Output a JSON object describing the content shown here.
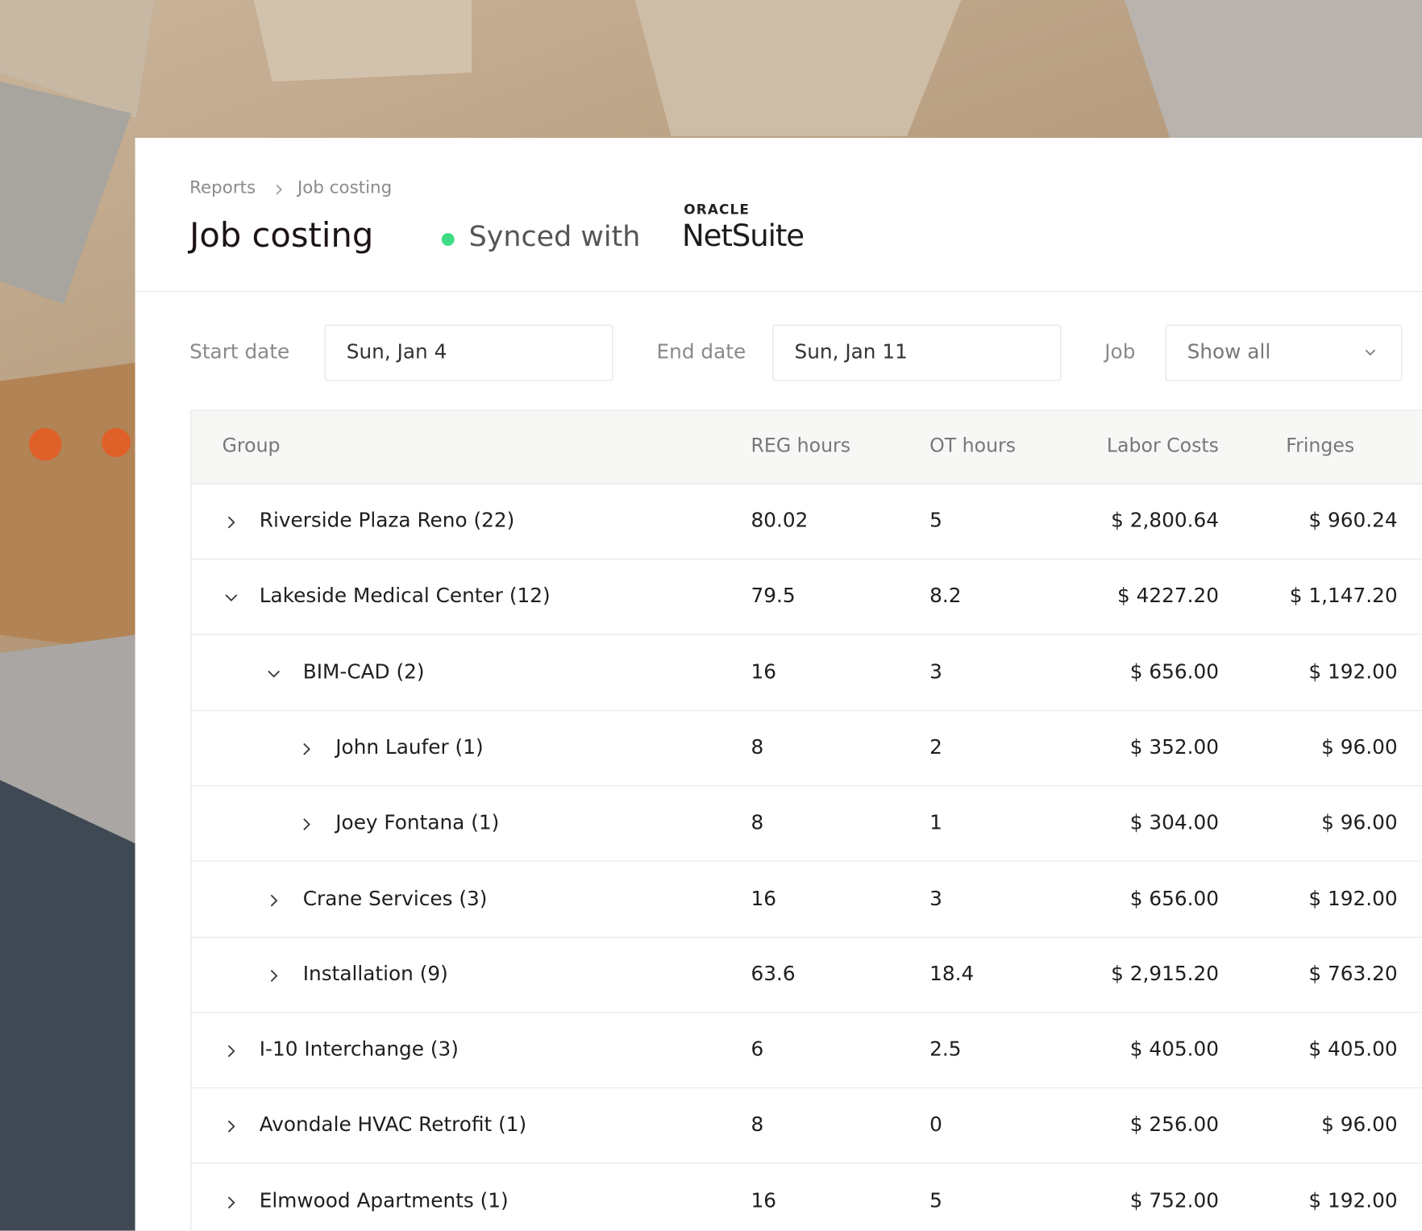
{
  "breadcrumb": [
    "Reports",
    "Job costing"
  ],
  "header": {
    "title": "Job costing",
    "sync_status": "Synced with",
    "integration_brand": "ORACLE",
    "integration_name": "NetSuite"
  },
  "filters": [
    {
      "label": "Start date",
      "value": "Sun, Jan 4"
    },
    {
      "label": "End date",
      "value": "Sun, Jan 11"
    },
    {
      "label": "Job",
      "value": "Show all"
    }
  ],
  "table": {
    "columns": [
      "Group",
      "REG hours",
      "OT hours",
      "Labor Costs",
      "Fringes"
    ],
    "rows": [
      [
        "Riverside Plaza Reno (22)",
        "80.02",
        "5",
        "$ 2,800.64",
        "$ 960.24"
      ],
      [
        "Lakeside Medical Center (12)",
        "79.5",
        "8.2",
        "$ 4227.20",
        "$ 1,147.20"
      ],
      [
        "BIM-CAD (2)",
        "16",
        "3",
        "$ 656.00",
        "$ 192.00"
      ],
      [
        "John Laufer (1)",
        "8",
        "2",
        "$ 352.00",
        "$ 96.00"
      ],
      [
        "Joey Fontana (1)",
        "8",
        "1",
        "$ 304.00",
        "$ 96.00"
      ],
      [
        "Crane Services (3)",
        "16",
        "3",
        "$ 656.00",
        "$ 192.00"
      ],
      [
        "Installation (9)",
        "63.6",
        "18.4",
        "$ 2,915.20",
        "$ 763.20"
      ],
      [
        "I-10 Interchange (3)",
        "6",
        "2.5",
        "$ 405.00",
        "$ 405.00"
      ],
      [
        "Avondale HVAC Retrofit (1)",
        "8",
        "0",
        "$ 256.00",
        "$ 96.00"
      ],
      [
        "Elmwood Apartments (1)",
        "16",
        "5",
        "$ 752.00",
        "$ 192.00"
      ]
    ]
  }
}
